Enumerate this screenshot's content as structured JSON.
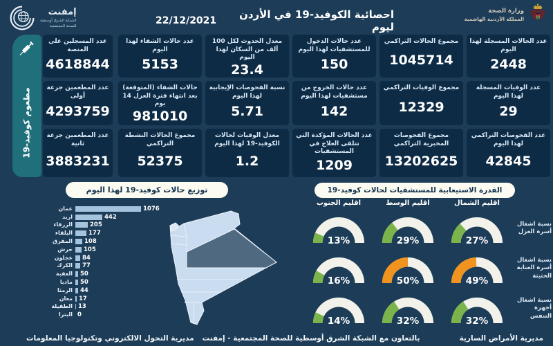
{
  "page": {
    "bg": "#1c3c57",
    "card_bg": "#0d2b45",
    "teal": "#20707c",
    "bar_color": "#a6c3dd",
    "accent_green": "#7cb44c",
    "accent_orange": "#f0941f",
    "gauge_track": "#f2f2ea"
  },
  "header": {
    "title": "احصائية الكوفيد-19 في الأردن ليوم",
    "date": "22/12/2021",
    "ministry": {
      "name": "وزارة الصحة",
      "kingdom": "المملكة الأردنية الهاشمية"
    },
    "network": {
      "name": "إمفنت",
      "sub1": "الشبكة الشرق أوسطية",
      "sub2": "للصحة المجتمعية"
    }
  },
  "vaccine": {
    "strip_label": "مطعوم كوفيد-19",
    "cards": [
      {
        "label": "عدد المسجلين على المنصة",
        "value": "4618844"
      },
      {
        "label": "عدد المطعمين جرعة أولى",
        "value": "4293759"
      },
      {
        "label": "عدد المطعمين جرعة ثانية",
        "value": "3883231"
      }
    ]
  },
  "stat_columns_order": "right-to-left",
  "stat_columns": [
    [
      {
        "label": "عدد الحالات المسجلة لهذا اليوم",
        "value": "2448"
      },
      {
        "label": "عدد الوفيات المسجلة لهذا اليوم",
        "value": "29"
      },
      {
        "label": "عدد الفحوصات التراكمي لهذا اليوم",
        "value": "42845"
      }
    ],
    [
      {
        "label": "مجموع الحالات التراكمي",
        "value": "1045714"
      },
      {
        "label": "مجموع الوفيات التراكمي",
        "value": "12329"
      },
      {
        "label": "مجموع الفحوصات المخبرية التراكمي",
        "value": "13202625"
      }
    ],
    [
      {
        "label": "عدد حالات الدخول للمستشفيات لهذا اليوم",
        "value": "150"
      },
      {
        "label": "عدد حالات الخروج من مستشفيات لهذا اليوم",
        "value": "142"
      },
      {
        "label": "عدد الحالات المؤكدة التي تتلقى العلاج في المستشفيات",
        "value": "1209"
      }
    ],
    [
      {
        "label": "معدل الحدوث لكل 100 ألف من السكان لهذا اليوم",
        "value": "23.4"
      },
      {
        "label": "نسبة الفحوصات الإيجابية لهذا اليوم",
        "value": "5.71"
      },
      {
        "label": "معدل الوفيات لحالات الكوفيد-19 لهذا اليوم",
        "value": "1.2"
      }
    ],
    [
      {
        "label": "عدد حالات الشفاء لهذا اليوم",
        "value": "5153"
      },
      {
        "label": "حالات الشفاء (المتوقعة) بعد انتهاء فترة العزل 14 يوم",
        "value": "981010"
      },
      {
        "label": "مجموع الحالات النشطة التراكمي",
        "value": "52375"
      }
    ]
  ],
  "chart_data": [
    {
      "type": "bar",
      "orientation": "horizontal",
      "title": "توزيع حالات كوفيد-19 لهذا اليوم",
      "categories": [
        "عمان",
        "اربد",
        "الزرقاء",
        "البلقاء",
        "المفرق",
        "جرش",
        "عجلون",
        "الكرك",
        "العقبة",
        "مادبا",
        "الرمثا",
        "معان",
        "الطفيلة",
        "البترا"
      ],
      "values": [
        1076,
        442,
        205,
        177,
        108,
        105,
        84,
        77,
        50,
        50,
        44,
        17,
        13,
        0
      ],
      "xlim": [
        0,
        1076
      ],
      "grid": false,
      "legend": false
    },
    {
      "type": "gauge",
      "title": "القدرة الاستيعابية للمستشفيات لحالات كوفيد-19",
      "columns": [
        "اقليم الجنوب",
        "اقليم الوسط",
        "اقليم الشمال"
      ],
      "series": [
        {
          "name": "نسبة اشغال أسرة العزل",
          "values": [
            13,
            29,
            27
          ]
        },
        {
          "name": "نسبة اشغال أسرة العناية الحثيثة",
          "values": [
            16,
            50,
            49
          ]
        },
        {
          "name": "نسبة اشغال أجهزة التنفس",
          "values": [
            14,
            32,
            32
          ]
        }
      ],
      "unit": "%",
      "range": [
        0,
        100
      ],
      "orange_threshold": 40
    }
  ],
  "footer": {
    "right": "مديرية الأمراض السارية",
    "center": "بالتعاون مع الشبكة الشرق أوسطية للصحة المجتمعية - إمفنت",
    "left": "مديرية التحول الالكتروني وتكنولوجيا المعلومات"
  }
}
